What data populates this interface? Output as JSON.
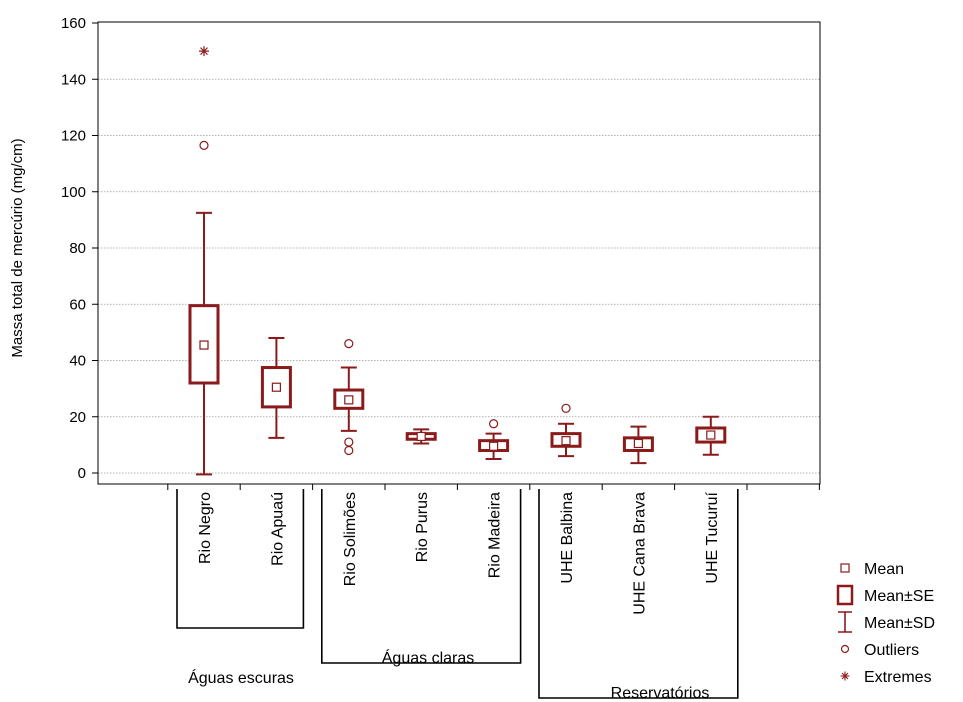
{
  "chart_data": {
    "type": "box",
    "ylabel": "Massa total de mercúrio (mg/cm)",
    "ylim": [
      0,
      160
    ],
    "yticks": [
      0,
      20,
      40,
      60,
      80,
      100,
      120,
      140,
      160
    ],
    "grid": true,
    "legend_position": "bottom-right",
    "color": "#8b1a1a",
    "categories": [
      "Rio Negro",
      "Rio Apuaú",
      "Rio Solimões",
      "Rio Purus",
      "Rio Madeira",
      "UHE Balbina",
      "UHE Cana Brava",
      "UHE Tucuruí"
    ],
    "series": [
      {
        "category": "Rio Negro",
        "mean": 45.5,
        "se_low": 32,
        "se_high": 59.5,
        "sd_low": -0.5,
        "sd_high": 92.5,
        "outliers": [
          116.5
        ],
        "extremes": [
          150
        ]
      },
      {
        "category": "Rio Apuaú",
        "mean": 30.5,
        "se_low": 23.5,
        "se_high": 37.5,
        "sd_low": 12.5,
        "sd_high": 48,
        "outliers": [],
        "extremes": []
      },
      {
        "category": "Rio Solimões",
        "mean": 26,
        "se_low": 23,
        "se_high": 29.5,
        "sd_low": 15,
        "sd_high": 37.5,
        "outliers": [
          46,
          11,
          8
        ],
        "extremes": []
      },
      {
        "category": "Rio Purus",
        "mean": 13,
        "se_low": 12,
        "se_high": 14,
        "sd_low": 10.5,
        "sd_high": 15.5,
        "outliers": [],
        "extremes": []
      },
      {
        "category": "Rio Madeira",
        "mean": 9.5,
        "se_low": 8,
        "se_high": 11.5,
        "sd_low": 5,
        "sd_high": 14,
        "outliers": [
          17.5
        ],
        "extremes": []
      },
      {
        "category": "UHE Balbina",
        "mean": 11.5,
        "se_low": 9.5,
        "se_high": 14,
        "sd_low": 6,
        "sd_high": 17.5,
        "outliers": [
          23
        ],
        "extremes": []
      },
      {
        "category": "UHE Cana Brava",
        "mean": 10.5,
        "se_low": 8,
        "se_high": 12.5,
        "sd_low": 3.5,
        "sd_high": 16.5,
        "outliers": [],
        "extremes": []
      },
      {
        "category": "UHE Tucuruí",
        "mean": 13.5,
        "se_low": 11,
        "se_high": 16,
        "sd_low": 6.5,
        "sd_high": 20,
        "outliers": [],
        "extremes": []
      }
    ],
    "groups": [
      {
        "label": "Águas escuras",
        "from": 0,
        "to": 1
      },
      {
        "label": "Águas claras",
        "from": 2,
        "to": 4
      },
      {
        "label": "Reservatórios",
        "from": 5,
        "to": 7
      }
    ],
    "legend": [
      {
        "symbol": "mean",
        "label": "Mean"
      },
      {
        "symbol": "se",
        "label": "Mean±SE"
      },
      {
        "symbol": "sd",
        "label": "Mean±SD"
      },
      {
        "symbol": "outlier",
        "label": "Outliers"
      },
      {
        "symbol": "extreme",
        "label": "Extremes"
      }
    ]
  }
}
